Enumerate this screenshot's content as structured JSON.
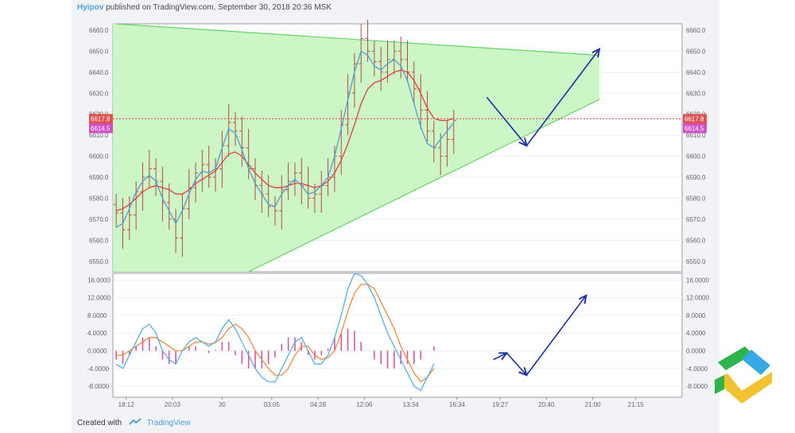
{
  "header": {
    "user": "Hyipov",
    "text": "published on TradingView.com, September 30, 2018 20:36 MSK"
  },
  "footer": {
    "created_with": "Created with",
    "brand": "TradingView"
  },
  "colors": {
    "triangle_fill": "#c8f5c0",
    "triangle_line": "#66d36a",
    "price_bar": "#b84a45",
    "ma_fast": "#4f9ed8",
    "ma_slow": "#e0403a",
    "macd_line": "#5aaee8",
    "signal_line": "#f0883e",
    "histogram": "#d05aa0",
    "arrow": "#1f2fa6",
    "price_tag": "#e05050",
    "price_tag_2": "#d050c8"
  },
  "chart_data": [
    {
      "type": "candlestick",
      "title": "",
      "ylim": [
        6545,
        6663
      ],
      "y_ticks": [
        "6550.0",
        "6560.0",
        "6570.0",
        "6580.0",
        "6590.0",
        "6600.0",
        "6610.0",
        "6620.0",
        "6630.0",
        "6640.0",
        "6650.0",
        "6660.0"
      ],
      "price_labels": [
        "6617.8",
        "6614.5"
      ],
      "x_tick_labels": [
        "18:12",
        "20:03",
        "30",
        "03:05",
        "04:28",
        "12:06",
        "13:34",
        "16:34",
        "19:27",
        "20:40",
        "21:00",
        "21:15"
      ],
      "close_values": [
        6573,
        6565,
        6572,
        6583,
        6590,
        6594,
        6588,
        6578,
        6570,
        6561,
        6575,
        6585,
        6592,
        6596,
        6590,
        6594,
        6605,
        6616,
        6612,
        6604,
        6594,
        6586,
        6582,
        6576,
        6574,
        6584,
        6588,
        6592,
        6586,
        6580,
        6582,
        6586,
        6590,
        6600,
        6615,
        6630,
        6644,
        6656,
        6650,
        6645,
        6640,
        6646,
        6650,
        6646,
        6640,
        6632,
        6622,
        6612,
        6604,
        6600,
        6608,
        6617
      ],
      "ma_fast": [
        6566,
        6568,
        6575,
        6583,
        6588,
        6591,
        6588,
        6580,
        6574,
        6568,
        6574,
        6582,
        6589,
        6593,
        6592,
        6594,
        6604,
        6613,
        6611,
        6603,
        6594,
        6587,
        6582,
        6577,
        6576,
        6582,
        6586,
        6589,
        6586,
        6582,
        6583,
        6586,
        6590,
        6600,
        6613,
        6627,
        6640,
        6650,
        6648,
        6643,
        6641,
        6644,
        6646,
        6643,
        6636,
        6625,
        6614,
        6606,
        6604,
        6608,
        6612,
        6616
      ],
      "ma_slow": [
        6574,
        6575,
        6577,
        6580,
        6583,
        6585,
        6586,
        6585,
        6584,
        6582,
        6582,
        6584,
        6587,
        6589,
        6591,
        6593,
        6597,
        6601,
        6602,
        6600,
        6596,
        6592,
        6589,
        6586,
        6585,
        6585,
        6586,
        6587,
        6587,
        6586,
        6585,
        6586,
        6588,
        6592,
        6598,
        6606,
        6615,
        6625,
        6632,
        6635,
        6636,
        6638,
        6640,
        6641,
        6640,
        6636,
        6630,
        6623,
        6618,
        6617,
        6617,
        6618
      ],
      "triangle": {
        "upper": [
          [
            0,
            6663
          ],
          [
            73,
            6648
          ]
        ],
        "lower": [
          [
            20,
            6545
          ],
          [
            73,
            6627
          ]
        ]
      },
      "projection": [
        [
          56,
          6628
        ],
        [
          62,
          6605
        ],
        [
          73,
          6651
        ]
      ]
    },
    {
      "type": "macd",
      "ylim": [
        -10.5,
        17.5
      ],
      "y_ticks": [
        "16.0000",
        "12.0000",
        "8.0000",
        "4.0000",
        "0.0000",
        "-4.0000",
        "-8.0000"
      ],
      "macd": [
        -3,
        -4,
        -1,
        2,
        5,
        6,
        4,
        0,
        -2,
        -3,
        0,
        2,
        3,
        2,
        1,
        2,
        5,
        7,
        5,
        2,
        -1,
        -4,
        -6,
        -7,
        -7,
        -4,
        -1,
        2,
        3,
        0,
        -3,
        -3,
        -1,
        3,
        8,
        14,
        17.5,
        17,
        15,
        12,
        8,
        4,
        1,
        -2,
        -5,
        -8,
        -9,
        -6,
        -3
      ],
      "signal": [
        -1,
        -1,
        0,
        1,
        2,
        3,
        3,
        2,
        1,
        0,
        0,
        1,
        2,
        2,
        1.5,
        1.8,
        3,
        5,
        6,
        5,
        3,
        0,
        -2,
        -4,
        -5.5,
        -5.5,
        -4,
        -1,
        1,
        1,
        -1,
        -2,
        -1.5,
        0,
        4,
        9,
        13,
        15,
        15,
        14,
        11,
        8,
        5,
        1,
        -2,
        -5,
        -7,
        -6,
        -4
      ],
      "histogram": [
        -2,
        -3,
        -1,
        1,
        3,
        3,
        1,
        -2,
        -3,
        -3,
        0,
        1,
        1,
        0,
        -0.5,
        0.2,
        2,
        2,
        -1,
        -3,
        -4,
        -4,
        -4,
        -3,
        -1.5,
        1.5,
        3,
        3,
        2,
        -1,
        -2,
        -1,
        0.5,
        3,
        4,
        5,
        4.5,
        2,
        0,
        -2,
        -3,
        -4,
        -4,
        -3,
        -3,
        -3,
        -2,
        0,
        1
      ],
      "projection": [
        [
          57,
          -2
        ],
        [
          59,
          -0.5
        ],
        [
          62,
          -5.5
        ],
        [
          71,
          12.5
        ]
      ]
    }
  ]
}
